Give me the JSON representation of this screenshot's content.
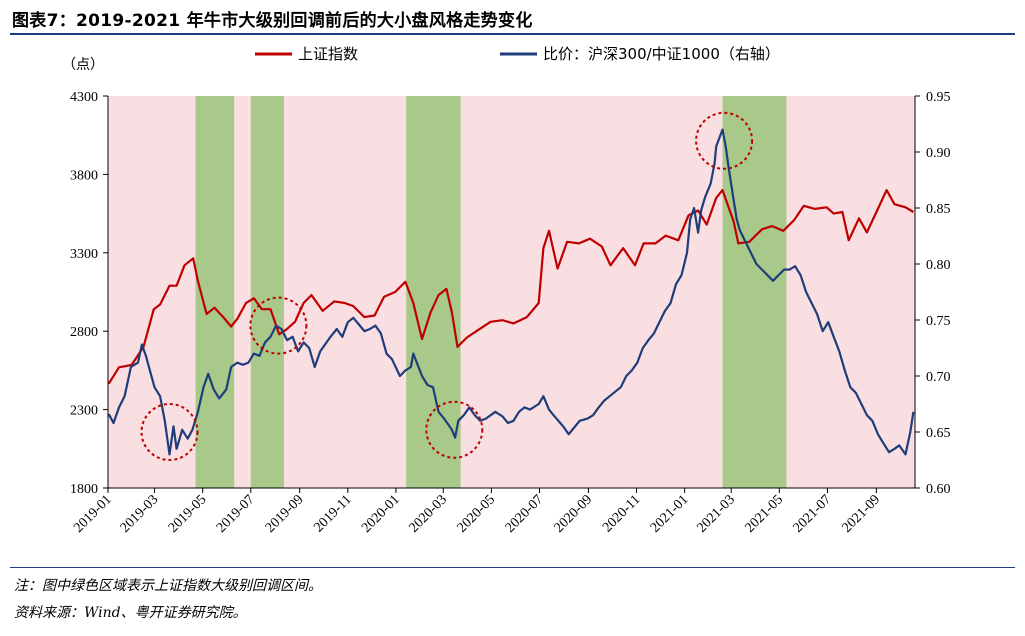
{
  "title": "图表7：2019-2021 年牛市大级别回调前后的大小盘风格走势变化",
  "notes": {
    "note": "注：图中绿色区域表示上证指数大级别回调区间。",
    "source": "资料来源：Wind、粤开证券研究院。"
  },
  "colors": {
    "shanghai": "#c00000",
    "ratio": "#1f3d7a",
    "background_band": "#f9dfe1",
    "correction_band": "#a8c98a",
    "circle": "#c00000"
  },
  "chart_data": {
    "type": "line",
    "title": "",
    "left_axis": {
      "unit_label": "（点）",
      "min": 1800,
      "max": 4300,
      "ticks": [
        1800,
        2300,
        2800,
        3300,
        3800,
        4300
      ]
    },
    "right_axis": {
      "min": 0.6,
      "max": 0.95,
      "ticks": [
        "0.60",
        "0.65",
        "0.70",
        "0.75",
        "0.80",
        "0.85",
        "0.90",
        "0.95"
      ]
    },
    "x_range": [
      "2019-01-01",
      "2021-10-20"
    ],
    "x_ticks": [
      "2019-01",
      "2019-03",
      "2019-05",
      "2019-07",
      "2019-09",
      "2019-11",
      "2020-01",
      "2020-03",
      "2020-05",
      "2020-07",
      "2020-09",
      "2020-11",
      "2021-01",
      "2021-03",
      "2021-05",
      "2021-07",
      "2021-09"
    ],
    "correction_periods": [
      [
        "2019-04-22",
        "2019-06-10"
      ],
      [
        "2019-07-01",
        "2019-08-12"
      ],
      [
        "2020-01-14",
        "2020-03-23"
      ],
      [
        "2021-02-18",
        "2021-05-10"
      ]
    ],
    "highlight_circles": [
      {
        "date": "2019-03-20",
        "axis": "right",
        "value": 0.65
      },
      {
        "date": "2019-08-05",
        "axis": "right",
        "value": 0.745
      },
      {
        "date": "2020-03-15",
        "axis": "right",
        "value": 0.652
      },
      {
        "date": "2021-02-20",
        "axis": "right",
        "value": 0.91
      }
    ],
    "series": [
      {
        "name": "上证指数",
        "axis": "left",
        "points": [
          [
            "2019-01-02",
            2465
          ],
          [
            "2019-01-15",
            2570
          ],
          [
            "2019-01-31",
            2585
          ],
          [
            "2019-02-15",
            2700
          ],
          [
            "2019-02-28",
            2940
          ],
          [
            "2019-03-08",
            2970
          ],
          [
            "2019-03-20",
            3090
          ],
          [
            "2019-03-29",
            3090
          ],
          [
            "2019-04-08",
            3220
          ],
          [
            "2019-04-19",
            3265
          ],
          [
            "2019-04-25",
            3120
          ],
          [
            "2019-05-06",
            2910
          ],
          [
            "2019-05-16",
            2950
          ],
          [
            "2019-05-27",
            2890
          ],
          [
            "2019-06-06",
            2830
          ],
          [
            "2019-06-14",
            2880
          ],
          [
            "2019-06-25",
            2980
          ],
          [
            "2019-07-05",
            3010
          ],
          [
            "2019-07-15",
            2940
          ],
          [
            "2019-07-26",
            2940
          ],
          [
            "2019-08-06",
            2780
          ],
          [
            "2019-08-15",
            2810
          ],
          [
            "2019-08-26",
            2860
          ],
          [
            "2019-09-06",
            2980
          ],
          [
            "2019-09-16",
            3030
          ],
          [
            "2019-09-30",
            2930
          ],
          [
            "2019-10-15",
            2990
          ],
          [
            "2019-10-28",
            2980
          ],
          [
            "2019-11-08",
            2960
          ],
          [
            "2019-11-22",
            2890
          ],
          [
            "2019-12-05",
            2900
          ],
          [
            "2019-12-17",
            3020
          ],
          [
            "2019-12-31",
            3050
          ],
          [
            "2020-01-13",
            3115
          ],
          [
            "2020-01-23",
            2980
          ],
          [
            "2020-02-03",
            2750
          ],
          [
            "2020-02-14",
            2920
          ],
          [
            "2020-02-24",
            3030
          ],
          [
            "2020-03-05",
            3070
          ],
          [
            "2020-03-12",
            2920
          ],
          [
            "2020-03-19",
            2700
          ],
          [
            "2020-03-31",
            2760
          ],
          [
            "2020-04-15",
            2810
          ],
          [
            "2020-04-30",
            2860
          ],
          [
            "2020-05-15",
            2870
          ],
          [
            "2020-05-29",
            2850
          ],
          [
            "2020-06-15",
            2890
          ],
          [
            "2020-06-30",
            2980
          ],
          [
            "2020-07-06",
            3330
          ],
          [
            "2020-07-13",
            3440
          ],
          [
            "2020-07-24",
            3200
          ],
          [
            "2020-08-05",
            3370
          ],
          [
            "2020-08-20",
            3360
          ],
          [
            "2020-09-03",
            3390
          ],
          [
            "2020-09-18",
            3340
          ],
          [
            "2020-09-29",
            3220
          ],
          [
            "2020-10-15",
            3330
          ],
          [
            "2020-10-30",
            3220
          ],
          [
            "2020-11-10",
            3360
          ],
          [
            "2020-11-25",
            3360
          ],
          [
            "2020-12-08",
            3410
          ],
          [
            "2020-12-24",
            3380
          ],
          [
            "2021-01-06",
            3540
          ],
          [
            "2021-01-18",
            3570
          ],
          [
            "2021-01-29",
            3480
          ],
          [
            "2021-02-10",
            3650
          ],
          [
            "2021-02-18",
            3700
          ],
          [
            "2021-03-04",
            3500
          ],
          [
            "2021-03-10",
            3360
          ],
          [
            "2021-03-24",
            3370
          ],
          [
            "2021-04-09",
            3450
          ],
          [
            "2021-04-22",
            3470
          ],
          [
            "2021-05-06",
            3440
          ],
          [
            "2021-05-20",
            3510
          ],
          [
            "2021-06-01",
            3600
          ],
          [
            "2021-06-15",
            3580
          ],
          [
            "2021-06-30",
            3590
          ],
          [
            "2021-07-09",
            3550
          ],
          [
            "2021-07-20",
            3560
          ],
          [
            "2021-07-28",
            3380
          ],
          [
            "2021-08-10",
            3520
          ],
          [
            "2021-08-20",
            3430
          ],
          [
            "2021-09-03",
            3580
          ],
          [
            "2021-09-14",
            3700
          ],
          [
            "2021-09-24",
            3610
          ],
          [
            "2021-10-08",
            3590
          ],
          [
            "2021-10-18",
            3560
          ]
        ]
      },
      {
        "name": "比价：沪深300/中证1000（右轴）",
        "axis": "right",
        "points": [
          [
            "2019-01-02",
            0.666
          ],
          [
            "2019-01-08",
            0.658
          ],
          [
            "2019-01-15",
            0.672
          ],
          [
            "2019-01-22",
            0.682
          ],
          [
            "2019-01-30",
            0.708
          ],
          [
            "2019-02-08",
            0.712
          ],
          [
            "2019-02-13",
            0.728
          ],
          [
            "2019-02-18",
            0.718
          ],
          [
            "2019-02-25",
            0.7
          ],
          [
            "2019-03-01",
            0.69
          ],
          [
            "2019-03-08",
            0.682
          ],
          [
            "2019-03-14",
            0.66
          ],
          [
            "2019-03-20",
            0.63
          ],
          [
            "2019-03-25",
            0.655
          ],
          [
            "2019-03-29",
            0.635
          ],
          [
            "2019-04-05",
            0.652
          ],
          [
            "2019-04-12",
            0.644
          ],
          [
            "2019-04-18",
            0.652
          ],
          [
            "2019-04-25",
            0.668
          ],
          [
            "2019-05-02",
            0.69
          ],
          [
            "2019-05-08",
            0.702
          ],
          [
            "2019-05-15",
            0.688
          ],
          [
            "2019-05-22",
            0.68
          ],
          [
            "2019-05-31",
            0.688
          ],
          [
            "2019-06-06",
            0.708
          ],
          [
            "2019-06-14",
            0.712
          ],
          [
            "2019-06-21",
            0.71
          ],
          [
            "2019-06-28",
            0.712
          ],
          [
            "2019-07-05",
            0.72
          ],
          [
            "2019-07-12",
            0.718
          ],
          [
            "2019-07-19",
            0.73
          ],
          [
            "2019-07-26",
            0.735
          ],
          [
            "2019-08-02",
            0.745
          ],
          [
            "2019-08-09",
            0.742
          ],
          [
            "2019-08-16",
            0.732
          ],
          [
            "2019-08-23",
            0.735
          ],
          [
            "2019-08-30",
            0.722
          ],
          [
            "2019-09-06",
            0.73
          ],
          [
            "2019-09-13",
            0.725
          ],
          [
            "2019-09-20",
            0.708
          ],
          [
            "2019-09-27",
            0.722
          ],
          [
            "2019-10-10",
            0.735
          ],
          [
            "2019-10-18",
            0.742
          ],
          [
            "2019-10-25",
            0.735
          ],
          [
            "2019-11-01",
            0.748
          ],
          [
            "2019-11-08",
            0.752
          ],
          [
            "2019-11-15",
            0.746
          ],
          [
            "2019-11-22",
            0.74
          ],
          [
            "2019-11-29",
            0.742
          ],
          [
            "2019-12-06",
            0.745
          ],
          [
            "2019-12-13",
            0.738
          ],
          [
            "2019-12-20",
            0.72
          ],
          [
            "2019-12-27",
            0.715
          ],
          [
            "2020-01-06",
            0.7
          ],
          [
            "2020-01-13",
            0.705
          ],
          [
            "2020-01-20",
            0.708
          ],
          [
            "2020-01-23",
            0.72
          ],
          [
            "2020-02-03",
            0.7
          ],
          [
            "2020-02-10",
            0.692
          ],
          [
            "2020-02-17",
            0.69
          ],
          [
            "2020-02-24",
            0.668
          ],
          [
            "2020-03-02",
            0.662
          ],
          [
            "2020-03-06",
            0.658
          ],
          [
            "2020-03-12",
            0.652
          ],
          [
            "2020-03-16",
            0.645
          ],
          [
            "2020-03-20",
            0.66
          ],
          [
            "2020-03-27",
            0.665
          ],
          [
            "2020-04-03",
            0.672
          ],
          [
            "2020-04-10",
            0.665
          ],
          [
            "2020-04-17",
            0.66
          ],
          [
            "2020-04-24",
            0.662
          ],
          [
            "2020-05-06",
            0.668
          ],
          [
            "2020-05-15",
            0.664
          ],
          [
            "2020-05-22",
            0.658
          ],
          [
            "2020-05-29",
            0.66
          ],
          [
            "2020-06-05",
            0.668
          ],
          [
            "2020-06-12",
            0.672
          ],
          [
            "2020-06-19",
            0.67
          ],
          [
            "2020-06-30",
            0.675
          ],
          [
            "2020-07-06",
            0.682
          ],
          [
            "2020-07-13",
            0.67
          ],
          [
            "2020-07-20",
            0.664
          ],
          [
            "2020-07-31",
            0.655
          ],
          [
            "2020-08-07",
            0.648
          ],
          [
            "2020-08-14",
            0.654
          ],
          [
            "2020-08-21",
            0.66
          ],
          [
            "2020-08-31",
            0.662
          ],
          [
            "2020-09-07",
            0.665
          ],
          [
            "2020-09-14",
            0.672
          ],
          [
            "2020-09-21",
            0.678
          ],
          [
            "2020-09-28",
            0.682
          ],
          [
            "2020-10-12",
            0.69
          ],
          [
            "2020-10-19",
            0.7
          ],
          [
            "2020-10-26",
            0.705
          ],
          [
            "2020-11-02",
            0.712
          ],
          [
            "2020-11-09",
            0.725
          ],
          [
            "2020-11-16",
            0.732
          ],
          [
            "2020-11-23",
            0.738
          ],
          [
            "2020-11-30",
            0.748
          ],
          [
            "2020-12-07",
            0.758
          ],
          [
            "2020-12-14",
            0.765
          ],
          [
            "2020-12-21",
            0.782
          ],
          [
            "2020-12-28",
            0.79
          ],
          [
            "2021-01-04",
            0.81
          ],
          [
            "2021-01-08",
            0.84
          ],
          [
            "2021-01-13",
            0.85
          ],
          [
            "2021-01-18",
            0.828
          ],
          [
            "2021-01-22",
            0.848
          ],
          [
            "2021-01-27",
            0.86
          ],
          [
            "2021-02-03",
            0.872
          ],
          [
            "2021-02-08",
            0.89
          ],
          [
            "2021-02-10",
            0.905
          ],
          [
            "2021-02-18",
            0.92
          ],
          [
            "2021-02-22",
            0.905
          ],
          [
            "2021-02-26",
            0.885
          ],
          [
            "2021-03-03",
            0.862
          ],
          [
            "2021-03-08",
            0.84
          ],
          [
            "2021-03-12",
            0.83
          ],
          [
            "2021-03-19",
            0.82
          ],
          [
            "2021-03-26",
            0.81
          ],
          [
            "2021-04-02",
            0.8
          ],
          [
            "2021-04-09",
            0.795
          ],
          [
            "2021-04-16",
            0.79
          ],
          [
            "2021-04-23",
            0.785
          ],
          [
            "2021-04-30",
            0.79
          ],
          [
            "2021-05-07",
            0.795
          ],
          [
            "2021-05-14",
            0.795
          ],
          [
            "2021-05-21",
            0.798
          ],
          [
            "2021-05-28",
            0.79
          ],
          [
            "2021-06-04",
            0.775
          ],
          [
            "2021-06-11",
            0.765
          ],
          [
            "2021-06-18",
            0.755
          ],
          [
            "2021-06-25",
            0.74
          ],
          [
            "2021-07-02",
            0.748
          ],
          [
            "2021-07-09",
            0.735
          ],
          [
            "2021-07-16",
            0.722
          ],
          [
            "2021-07-23",
            0.705
          ],
          [
            "2021-07-30",
            0.69
          ],
          [
            "2021-08-06",
            0.685
          ],
          [
            "2021-08-13",
            0.675
          ],
          [
            "2021-08-20",
            0.665
          ],
          [
            "2021-08-27",
            0.66
          ],
          [
            "2021-09-03",
            0.648
          ],
          [
            "2021-09-10",
            0.64
          ],
          [
            "2021-09-17",
            0.632
          ],
          [
            "2021-09-24",
            0.635
          ],
          [
            "2021-09-30",
            0.638
          ],
          [
            "2021-10-08",
            0.63
          ],
          [
            "2021-10-14",
            0.65
          ],
          [
            "2021-10-18",
            0.668
          ]
        ]
      }
    ]
  }
}
